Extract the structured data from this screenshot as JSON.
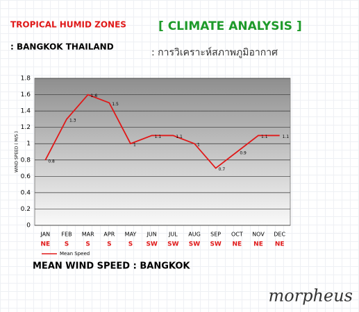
{
  "header": {
    "zone": "TROPICAL HUMID ZONES",
    "location": ": BANGKOK THAILAND",
    "title": "[ CLIMATE ANALYSIS ]",
    "subtitle_thai": ": การวิเคราะห์สภาพภูมิอากาศ"
  },
  "chart_data": {
    "type": "line",
    "title": "MEAN WIND SPEED : BANGKOK",
    "y_label": "WIND SPEED ( M/S )",
    "categories": [
      "JAN",
      "FEB",
      "MAR",
      "APR",
      "MAY",
      "JUN",
      "JUL",
      "AUG",
      "SEP",
      "OCT",
      "NOV",
      "DEC"
    ],
    "wind_directions": [
      "NE",
      "S",
      "S",
      "S",
      "S",
      "SW",
      "SW",
      "SW",
      "SW",
      "NE",
      "NE",
      "NE"
    ],
    "series": [
      {
        "name": "Mean Speed",
        "color": "#e01818",
        "values": [
          0.8,
          1.3,
          1.6,
          1.5,
          1,
          1.1,
          1.1,
          1,
          0.7,
          0.9,
          1.1,
          1.1
        ]
      }
    ],
    "ylim": [
      0,
      1.8
    ],
    "yticks": [
      0,
      0.2,
      0.4,
      0.6,
      0.8,
      1,
      1.2,
      1.4,
      1.6,
      1.8
    ],
    "grid": true,
    "legend": "bottom-left"
  },
  "logo": "morpheus"
}
